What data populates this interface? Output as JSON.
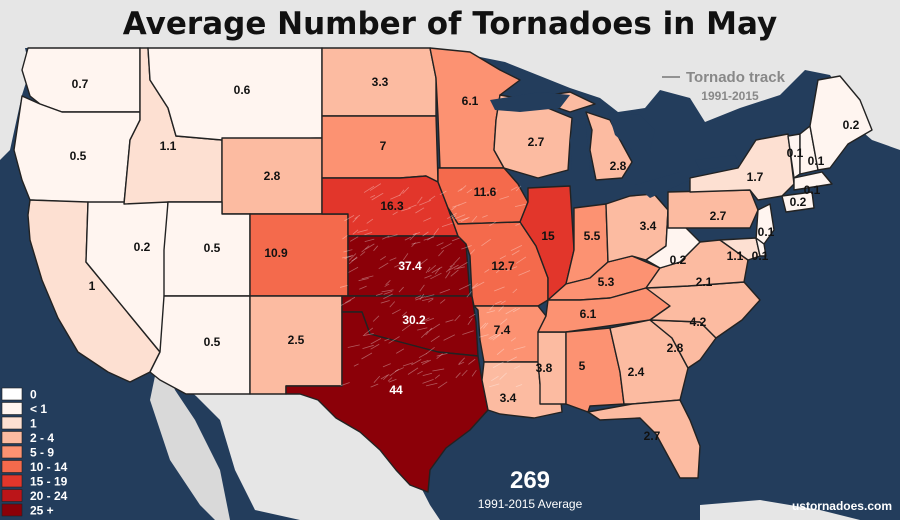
{
  "title": "Average Number of Tornadoes in May",
  "track_legend": {
    "label": "Tornado track",
    "years": "1991-2015"
  },
  "total": {
    "value": "269",
    "label": "1991-2015 Average"
  },
  "credit": "ustornadoes.com",
  "colors": {
    "ocean": "#233d5c",
    "land": "#e8e8e8",
    "title_banner": "#e8e8e8",
    "bins": {
      "0": "#ffffff",
      "lt1": "#fff5f0",
      "1": "#fde0d2",
      "2-4": "#fcbba1",
      "5-9": "#fc9272",
      "10-14": "#f46a4c",
      "15-19": "#e2362b",
      "20-24": "#bb1519",
      "25+": "#8b0008"
    }
  },
  "legend": [
    {
      "label": "0",
      "bin": "0"
    },
    {
      "label": "< 1",
      "bin": "lt1"
    },
    {
      "label": "1",
      "bin": "1"
    },
    {
      "label": "2 - 4",
      "bin": "2-4"
    },
    {
      "label": "5 - 9",
      "bin": "5-9"
    },
    {
      "label": "10 - 14",
      "bin": "10-14"
    },
    {
      "label": "15 - 19",
      "bin": "15-19"
    },
    {
      "label": "20 - 24",
      "bin": "20-24"
    },
    {
      "label": "25 +",
      "bin": "25+"
    }
  ],
  "states": [
    {
      "abbr": "WA",
      "value": "0.7"
    },
    {
      "abbr": "OR",
      "value": "0.5"
    },
    {
      "abbr": "CA",
      "value": "1"
    },
    {
      "abbr": "NV",
      "value": "0.2"
    },
    {
      "abbr": "ID",
      "value": "1.1"
    },
    {
      "abbr": "MT",
      "value": "0.6"
    },
    {
      "abbr": "WY",
      "value": "2.8"
    },
    {
      "abbr": "UT",
      "value": "0.5"
    },
    {
      "abbr": "AZ",
      "value": "0.5"
    },
    {
      "abbr": "CO",
      "value": "10.9"
    },
    {
      "abbr": "NM",
      "value": "2.5"
    },
    {
      "abbr": "ND",
      "value": "3.3"
    },
    {
      "abbr": "SD",
      "value": "7"
    },
    {
      "abbr": "NE",
      "value": "16.3"
    },
    {
      "abbr": "KS",
      "value": "37.4"
    },
    {
      "abbr": "OK",
      "value": "30.2"
    },
    {
      "abbr": "TX",
      "value": "44"
    },
    {
      "abbr": "MN",
      "value": "6.1"
    },
    {
      "abbr": "IA",
      "value": "11.6"
    },
    {
      "abbr": "MO",
      "value": "12.7"
    },
    {
      "abbr": "AR",
      "value": "7.4"
    },
    {
      "abbr": "LA",
      "value": "3.4"
    },
    {
      "abbr": "WI",
      "value": "2.7"
    },
    {
      "abbr": "IL",
      "value": "15"
    },
    {
      "abbr": "MS",
      "value": "3.8"
    },
    {
      "abbr": "MI",
      "value": "2.8"
    },
    {
      "abbr": "IN",
      "value": "5.5"
    },
    {
      "abbr": "KY",
      "value": "5.3"
    },
    {
      "abbr": "TN",
      "value": "6.1"
    },
    {
      "abbr": "AL",
      "value": "5"
    },
    {
      "abbr": "OH",
      "value": "3.4"
    },
    {
      "abbr": "GA",
      "value": "2.4"
    },
    {
      "abbr": "FL",
      "value": "2.7"
    },
    {
      "abbr": "SC",
      "value": "2.8"
    },
    {
      "abbr": "NC",
      "value": "4.2"
    },
    {
      "abbr": "VA",
      "value": "2.1"
    },
    {
      "abbr": "WV",
      "value": "0.2"
    },
    {
      "abbr": "PA",
      "value": "2.7"
    },
    {
      "abbr": "NY",
      "value": "1.7"
    },
    {
      "abbr": "NJ",
      "value": "0.1"
    },
    {
      "abbr": "MD",
      "value": "1.1"
    },
    {
      "abbr": "DE",
      "value": "0.1"
    },
    {
      "abbr": "VT",
      "value": "0.1"
    },
    {
      "abbr": "NH",
      "value": "0.1"
    },
    {
      "abbr": "ME",
      "value": "0.2"
    },
    {
      "abbr": "MA",
      "value": "0.1"
    },
    {
      "abbr": "CT",
      "value": "0.2"
    }
  ]
}
